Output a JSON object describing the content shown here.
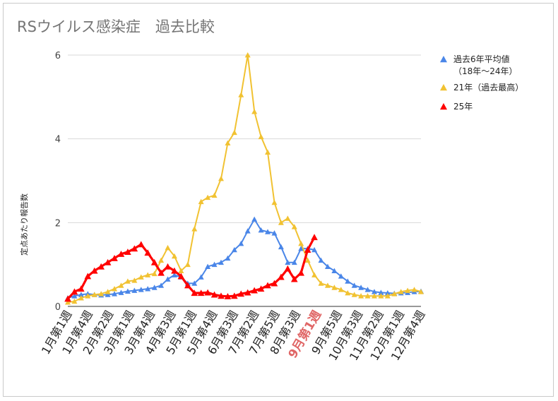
{
  "chart_data": {
    "type": "line",
    "title": "RSウイルス感染症　過去比較",
    "ylabel": "定点あたり報告数",
    "ylim": [
      0,
      6
    ],
    "yticks": [
      "0",
      "2",
      "4",
      "6"
    ],
    "grid": true,
    "legend_position": "right",
    "x_labels": [
      "1月第1週",
      "1月第4週",
      "2月第2週",
      "3月第1週",
      "3月第4週",
      "4月第3週",
      "5月第1週",
      "5月第4週",
      "6月第3週",
      "7月第2週",
      "7月第5週",
      "8月第3週",
      "9月第1週",
      "9月第5週",
      "10月第3週",
      "11月第2週",
      "12月第1週",
      "12月第4週"
    ],
    "highlight_label": "9月第1週",
    "series": [
      {
        "name": "過去6年平均値",
        "legend_sub": "（18年〜24年）",
        "color": "#4a86e8",
        "values": [
          0.2,
          0.25,
          0.28,
          0.3,
          0.28,
          0.27,
          0.28,
          0.3,
          0.33,
          0.36,
          0.38,
          0.4,
          0.42,
          0.45,
          0.5,
          0.65,
          0.75,
          0.7,
          0.55,
          0.55,
          0.7,
          0.95,
          1.0,
          1.05,
          1.15,
          1.35,
          1.5,
          1.8,
          2.08,
          1.82,
          1.78,
          1.75,
          1.42,
          1.05,
          1.05,
          1.38,
          1.38,
          1.35,
          1.1,
          0.95,
          0.85,
          0.72,
          0.6,
          0.5,
          0.45,
          0.4,
          0.35,
          0.33,
          0.32,
          0.31,
          0.32,
          0.33,
          0.35,
          0.36
        ]
      },
      {
        "name": "21年（過去最高）",
        "color": "#f1c232",
        "values": [
          0.1,
          0.12,
          0.2,
          0.25,
          0.28,
          0.3,
          0.35,
          0.42,
          0.5,
          0.6,
          0.62,
          0.7,
          0.75,
          0.78,
          1.1,
          1.4,
          1.2,
          0.85,
          1.0,
          1.85,
          2.5,
          2.6,
          2.65,
          3.05,
          3.9,
          4.15,
          5.05,
          6.0,
          4.65,
          4.05,
          3.68,
          2.48,
          2.0,
          2.1,
          1.9,
          1.5,
          1.1,
          0.75,
          0.55,
          0.5,
          0.45,
          0.4,
          0.32,
          0.28,
          0.25,
          0.25,
          0.25,
          0.25,
          0.25,
          0.3,
          0.35,
          0.38,
          0.4,
          0.35
        ]
      },
      {
        "name": "25年",
        "color": "#ff0000",
        "values": [
          0.18,
          0.35,
          0.42,
          0.72,
          0.85,
          0.95,
          1.05,
          1.15,
          1.25,
          1.3,
          1.38,
          1.48,
          1.28,
          1.05,
          0.8,
          0.95,
          0.85,
          0.72,
          0.5,
          0.32,
          0.32,
          0.33,
          0.28,
          0.25,
          0.24,
          0.25,
          0.3,
          0.33,
          0.38,
          0.42,
          0.5,
          0.55,
          0.7,
          0.9,
          0.65,
          0.8,
          1.35,
          1.65
        ]
      }
    ]
  }
}
